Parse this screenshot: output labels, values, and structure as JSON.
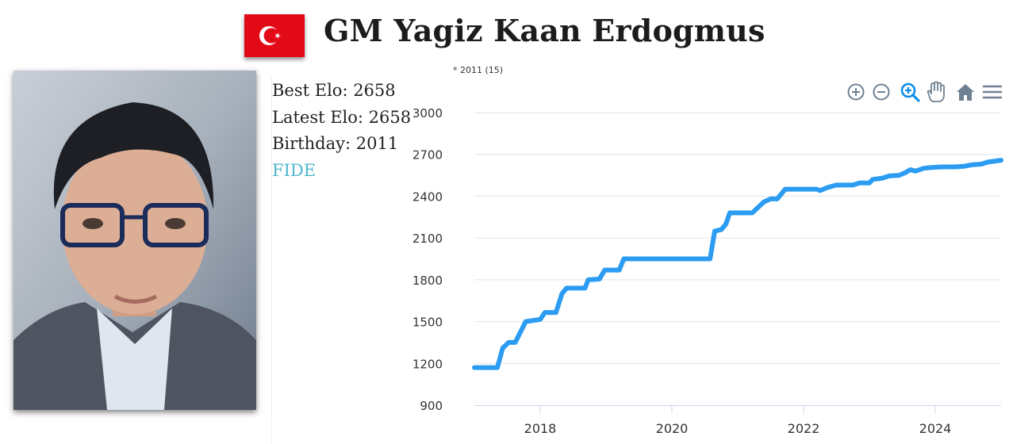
{
  "header": {
    "title": "GM Yagiz Kaan Erdogmus",
    "flag_icon": "turkey-flag-icon"
  },
  "player": {
    "best_elo": "Best Elo: 2658",
    "latest_elo": "Latest Elo: 2658",
    "birthday": "Birthday: 2011",
    "fide_link": "FIDE"
  },
  "chart_note": "* 2011 (15)",
  "toolbar": {
    "icons": [
      "zoom-in-icon",
      "zoom-out-icon",
      "selection-zoom-icon",
      "pan-hand-icon",
      "home-reset-icon",
      "menu-icon"
    ]
  },
  "colors": {
    "line": "#2b9cf2",
    "fide_link": "#4fb6cc",
    "toolbar_icon": "#6e8192",
    "toolbar_active": "#0e8de8",
    "flag_red": "#e30a17"
  },
  "chart_data": {
    "type": "line",
    "title": "",
    "xlabel": "",
    "ylabel": "",
    "xlim": [
      2017.0,
      2025.0
    ],
    "ylim": [
      900,
      3000
    ],
    "y_ticks": [
      "900",
      "1200",
      "1500",
      "1800",
      "2100",
      "2400",
      "2700",
      "3000"
    ],
    "x_ticks": [
      "2018",
      "2020",
      "2022",
      "2024"
    ],
    "grid": true,
    "series": [
      {
        "x": [
          2017.0,
          2017.35,
          2017.43,
          2017.52,
          2017.62,
          2017.78,
          2018.0,
          2018.07,
          2018.24,
          2018.33,
          2018.4,
          2018.68,
          2018.73,
          2018.9,
          2018.98,
          2019.2,
          2019.27,
          2020.0,
          2020.58,
          2020.65,
          2020.75,
          2020.82,
          2020.88,
          2021.22,
          2021.4,
          2021.5,
          2021.6,
          2021.72,
          2021.78,
          2022.2,
          2022.25,
          2022.35,
          2022.5,
          2022.62,
          2022.75,
          2022.85,
          2022.93,
          2023.0,
          2023.05,
          2023.2,
          2023.3,
          2023.45,
          2023.55,
          2023.62,
          2023.7,
          2023.82,
          2023.92,
          2024.1,
          2024.3,
          2024.45,
          2024.55,
          2024.7,
          2024.8,
          2025.0
        ],
        "y": [
          1170,
          1170,
          1310,
          1350,
          1350,
          1500,
          1515,
          1565,
          1565,
          1700,
          1740,
          1740,
          1800,
          1805,
          1870,
          1870,
          1950,
          1950,
          1950,
          2150,
          2160,
          2200,
          2280,
          2280,
          2360,
          2380,
          2380,
          2450,
          2450,
          2450,
          2440,
          2460,
          2480,
          2480,
          2480,
          2495,
          2495,
          2495,
          2520,
          2530,
          2545,
          2550,
          2570,
          2590,
          2580,
          2600,
          2605,
          2610,
          2610,
          2615,
          2625,
          2630,
          2645,
          2658
        ]
      }
    ]
  }
}
